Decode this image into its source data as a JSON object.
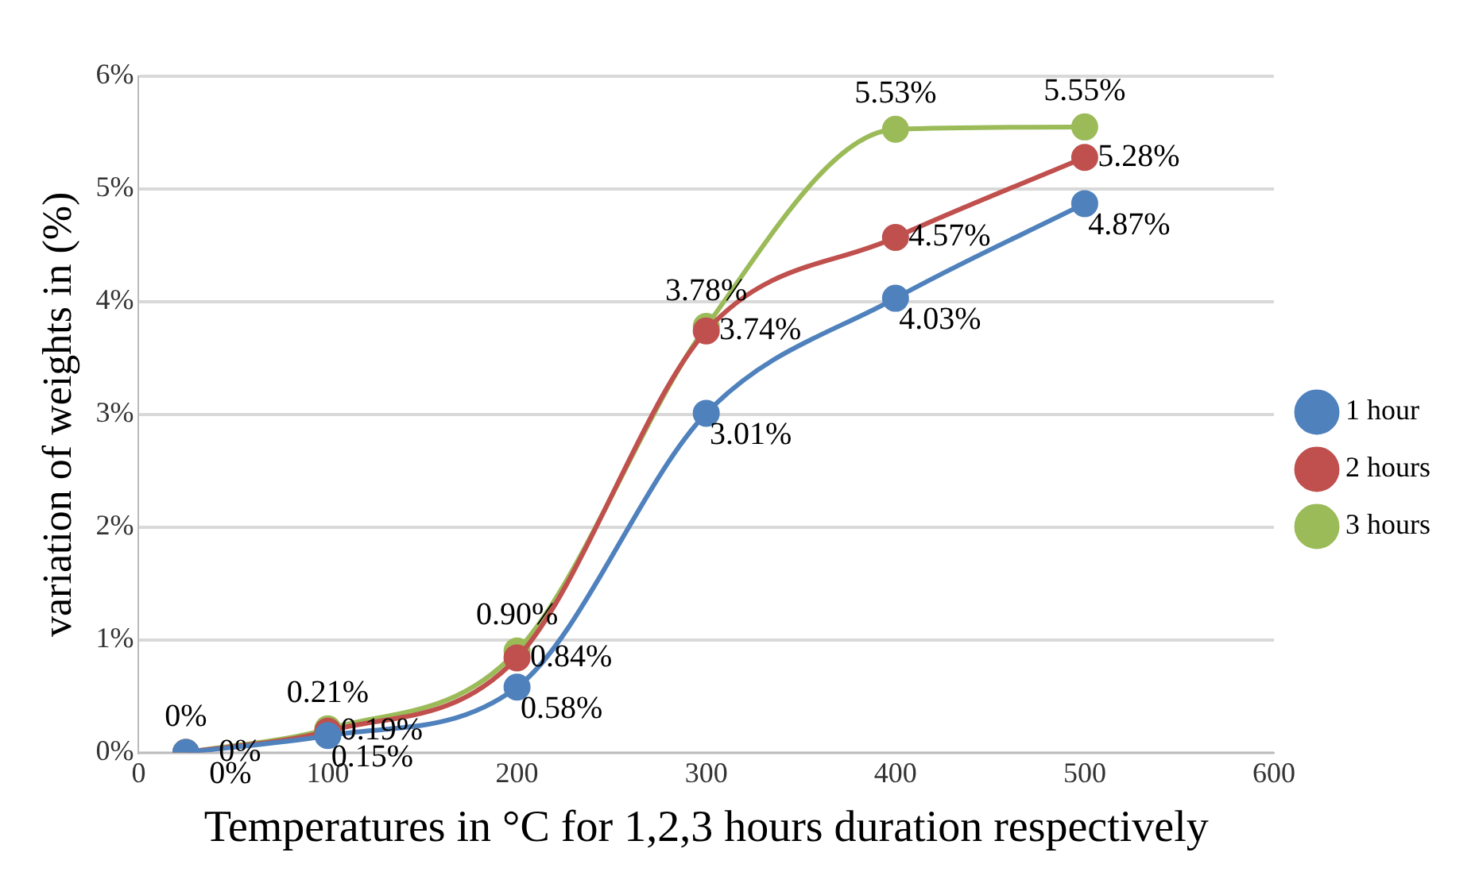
{
  "chart_data": {
    "type": "line",
    "xlabel": "Temperatures in °C for 1,2,3 hours duration respectively",
    "ylabel": "variation of weights in (%)",
    "x": [
      25,
      100,
      200,
      300,
      400,
      500
    ],
    "series": [
      {
        "name": "1 hour",
        "color": "#4f81bd",
        "values": [
          0,
          0.15,
          0.58,
          3.01,
          4.03,
          4.87
        ],
        "value_labels": [
          "0%",
          "0.15%",
          "0.58%",
          "3.01%",
          "4.03%",
          "4.87%"
        ]
      },
      {
        "name": "2 hours",
        "color": "#c0504d",
        "values": [
          0,
          0.19,
          0.84,
          3.74,
          4.57,
          5.28
        ],
        "value_labels": [
          "0%",
          "0.19%",
          "0.84%",
          "3.74%",
          "4.57%",
          "5.28%"
        ]
      },
      {
        "name": "3 hours",
        "color": "#9bbb59",
        "values": [
          0,
          0.21,
          0.9,
          3.78,
          5.53,
          5.55
        ],
        "value_labels": [
          "0%",
          "0.21%",
          "0.90%",
          "3.78%",
          "5.53%",
          "5.55%"
        ]
      }
    ],
    "xlim": [
      0,
      600
    ],
    "xticks": [
      0,
      100,
      200,
      300,
      400,
      500,
      600
    ],
    "ylim": [
      0,
      6
    ],
    "yticks": [
      {
        "value": 0,
        "label": "0%"
      },
      {
        "value": 1,
        "label": "1%"
      },
      {
        "value": 2,
        "label": "2%"
      },
      {
        "value": 3,
        "label": "3%"
      },
      {
        "value": 4,
        "label": "4%"
      },
      {
        "value": 5,
        "label": "5%"
      },
      {
        "value": 6,
        "label": "6%"
      }
    ],
    "grid": "y",
    "legend": "right",
    "marker": "circle",
    "line_style": "solid"
  }
}
